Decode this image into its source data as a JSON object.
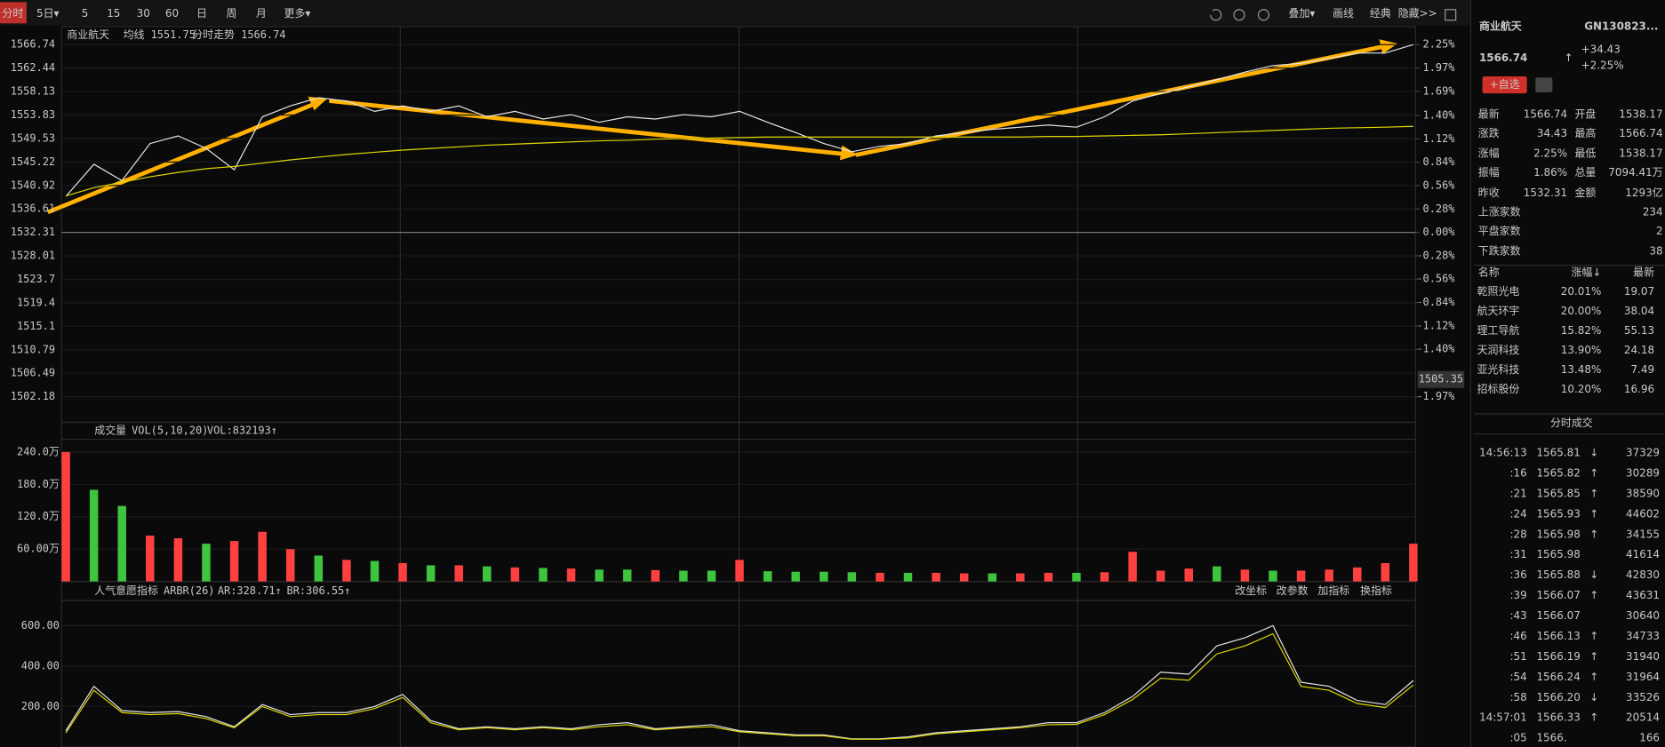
{
  "toolbar": {
    "tabs": [
      "分时",
      "5日▾",
      "5",
      "15",
      "30",
      "60",
      "日",
      "周",
      "月",
      "更多▾"
    ],
    "tools": [
      "叠加▾",
      "画线",
      "经典",
      "隐藏>>"
    ]
  },
  "price_chart": {
    "type": "line",
    "title": "商业航天",
    "avg_label": "均线",
    "avg_value": "1551.75",
    "trend_label": "分时走势",
    "last_value": "1566.74",
    "ylim": [
      1497.49,
      1570.05
    ],
    "yticks": [
      1566.74,
      1562.44,
      1558.13,
      1553.83,
      1549.53,
      1545.22,
      1540.92,
      1536.61,
      1532.31,
      1528.01,
      1523.7,
      1519.4,
      1515.1,
      1510.79,
      1506.49,
      1502.18
    ],
    "y2lim": [
      -2.2755,
      2.466
    ],
    "y2ticks": [
      {
        "value": 2.25,
        "label": "2.25%"
      },
      {
        "value": 1.97,
        "label": "1.97%"
      },
      {
        "value": 1.69,
        "label": "1.69%"
      },
      {
        "value": 1.4,
        "label": "1.40%"
      },
      {
        "value": 1.12,
        "label": "1.12%"
      },
      {
        "value": 0.84,
        "label": "0.84%"
      },
      {
        "value": 0.56,
        "label": "0.56%"
      },
      {
        "value": 0.28,
        "label": "0.28%"
      },
      {
        "value": 0,
        "label": "0.00%"
      },
      {
        "value": -0.28,
        "label": "-0.28%"
      },
      {
        "value": -0.56,
        "label": "-0.56%"
      },
      {
        "value": -0.84,
        "label": "-0.84%"
      },
      {
        "value": -1.12,
        "label": "-1.12%"
      },
      {
        "value": -1.4,
        "label": "-1.40%"
      },
      {
        "value": -1.97,
        "label": "-1.97%"
      }
    ],
    "cursor_value": 1505.35,
    "series": [
      {
        "name": "分时",
        "color": "#e6e6e6",
        "values": [
          1538.9,
          1544.8,
          1541.8,
          1548.6,
          1550.0,
          1547.7,
          1543.8,
          1553.5,
          1555.5,
          1557.0,
          1556.4,
          1554.5,
          1555.5,
          1554.5,
          1555.5,
          1553.5,
          1554.5,
          1553.1,
          1553.9,
          1552.5,
          1553.5,
          1553.1,
          1553.9,
          1553.5,
          1554.5,
          1552.5,
          1550.6,
          1548.6,
          1547.1,
          1548.1,
          1548.6,
          1550.0,
          1550.6,
          1551.2,
          1551.6,
          1552.0,
          1551.6,
          1553.5,
          1556.4,
          1557.8,
          1559.0,
          1560.3,
          1561.7,
          1562.9,
          1563.3,
          1564.2,
          1565.2,
          1565.2,
          1566.74
        ]
      },
      {
        "name": "均线",
        "color": "#e0d800",
        "values": [
          1539.0,
          1540.5,
          1541.5,
          1542.5,
          1543.3,
          1544.0,
          1544.4,
          1545.0,
          1545.6,
          1546.1,
          1546.6,
          1547.0,
          1547.4,
          1547.7,
          1548.0,
          1548.3,
          1548.5,
          1548.7,
          1548.9,
          1549.1,
          1549.2,
          1549.4,
          1549.5,
          1549.6,
          1549.7,
          1549.8,
          1549.8,
          1549.8,
          1549.8,
          1549.8,
          1549.8,
          1549.8,
          1549.8,
          1549.8,
          1549.8,
          1549.9,
          1549.9,
          1550.0,
          1550.1,
          1550.2,
          1550.4,
          1550.6,
          1550.8,
          1551.0,
          1551.2,
          1551.4,
          1551.5,
          1551.6,
          1551.75
        ]
      }
    ]
  },
  "volume_chart": {
    "type": "bar",
    "title": "成交量",
    "params": "VOL(5,10,20)",
    "vol_label": "VOL:832193↑",
    "ylim": [
      0,
      263.6
    ],
    "yticks": [
      {
        "value": 240,
        "label": "240.0万"
      },
      {
        "value": 180,
        "label": "180.0万"
      },
      {
        "value": 120,
        "label": "120.0万"
      },
      {
        "value": 60,
        "label": "60.00万"
      }
    ],
    "values": [
      240,
      170,
      140,
      85,
      80,
      70,
      75,
      92,
      60,
      48,
      40,
      38,
      34,
      30,
      30,
      28,
      26,
      25,
      24,
      22,
      22,
      21,
      20,
      20,
      40,
      19,
      18,
      18,
      17,
      16,
      16,
      16,
      15,
      15,
      15,
      16,
      16,
      17,
      55,
      20,
      24,
      28,
      22,
      20,
      20,
      22,
      26,
      34,
      70
    ],
    "colors": [
      "#ff4040",
      "#3ec53e",
      "#3ec53e",
      "#ff4040",
      "#ff4040",
      "#3ec53e",
      "#ff4040",
      "#ff4040",
      "#ff4040",
      "#3ec53e",
      "#ff4040",
      "#3ec53e",
      "#ff4040",
      "#3ec53e",
      "#ff4040",
      "#3ec53e",
      "#ff4040",
      "#3ec53e",
      "#ff4040",
      "#3ec53e",
      "#3ec53e",
      "#ff4040",
      "#3ec53e",
      "#3ec53e",
      "#ff4040",
      "#3ec53e",
      "#3ec53e",
      "#3ec53e",
      "#3ec53e",
      "#ff4040",
      "#3ec53e",
      "#ff4040",
      "#ff4040",
      "#3ec53e",
      "#ff4040",
      "#ff4040",
      "#3ec53e",
      "#ff4040",
      "#ff4040",
      "#ff4040",
      "#ff4040",
      "#3ec53e",
      "#ff4040",
      "#3ec53e",
      "#ff4040",
      "#ff4040",
      "#ff4040",
      "#ff4040",
      "#ff4040"
    ]
  },
  "arbr_chart": {
    "type": "line",
    "title": "人气意愿指标",
    "params": "ARBR(26)",
    "ar_label": "AR:328.71↑",
    "br_label": "BR:306.55↑",
    "buttons": [
      "改坐标",
      "改参数",
      "加指标",
      "换指标"
    ],
    "ylim": [
      0,
      724
    ],
    "yticks": [
      {
        "value": 600,
        "label": "600.00"
      },
      {
        "value": 400,
        "label": "400.00"
      },
      {
        "value": 200,
        "label": "200.00"
      }
    ],
    "series": [
      {
        "name": "AR",
        "color": "#e6e6e6",
        "values": [
          80,
          300,
          180,
          170,
          175,
          150,
          100,
          210,
          160,
          170,
          170,
          200,
          260,
          130,
          90,
          100,
          90,
          100,
          90,
          110,
          120,
          90,
          100,
          110,
          80,
          70,
          60,
          60,
          40,
          40,
          50,
          70,
          80,
          90,
          100,
          120,
          120,
          170,
          250,
          370,
          360,
          500,
          540,
          600,
          320,
          300,
          230,
          210,
          328.71
        ]
      },
      {
        "name": "BR",
        "color": "#e0d800",
        "values": [
          70,
          280,
          170,
          160,
          165,
          140,
          95,
          200,
          150,
          160,
          160,
          190,
          245,
          120,
          85,
          95,
          85,
          95,
          85,
          100,
          110,
          85,
          95,
          100,
          75,
          65,
          55,
          55,
          38,
          38,
          45,
          65,
          75,
          85,
          95,
          110,
          112,
          160,
          235,
          340,
          330,
          460,
          500,
          560,
          300,
          280,
          215,
          195,
          306.55
        ]
      }
    ]
  },
  "quote": {
    "name": "商业航天",
    "code": "GN130823...",
    "price": "1566.74",
    "arrow": "↑",
    "change": "+34.43",
    "change_pct": "+2.25%",
    "button": "+自选",
    "stats": [
      [
        "最新",
        "1566.74",
        "开盘",
        "1538.17"
      ],
      [
        "涨跌",
        "34.43",
        "最高",
        "1566.74"
      ],
      [
        "涨幅",
        "2.25%",
        "最低",
        "1538.17"
      ],
      [
        "振幅",
        "1.86%",
        "总量",
        "7094.41万"
      ],
      [
        "昨收",
        "1532.31",
        "金额",
        "1293亿"
      ]
    ],
    "breadth": [
      [
        "上涨家数",
        "234"
      ],
      [
        "平盘家数",
        "2"
      ],
      [
        "下跌家数",
        "38"
      ]
    ]
  },
  "constituents": {
    "headers": [
      "名称",
      "涨幅↓",
      "最新"
    ],
    "rows": [
      [
        "乾照光电",
        "20.01%",
        "19.07"
      ],
      [
        "航天环宇",
        "20.00%",
        "38.04"
      ],
      [
        "理工导航",
        "15.82%",
        "55.13"
      ],
      [
        "天润科技",
        "13.90%",
        "24.18"
      ],
      [
        "亚光科技",
        "13.48%",
        "7.49"
      ],
      [
        "招标股份",
        "10.20%",
        "16.96"
      ]
    ]
  },
  "trades": {
    "title": "分时成交",
    "rows": [
      [
        "14:56:13",
        "1565.81",
        "↓",
        "37329"
      ],
      [
        ":16",
        "1565.82",
        "↑",
        "30289"
      ],
      [
        ":21",
        "1565.85",
        "↑",
        "38590"
      ],
      [
        ":24",
        "1565.93",
        "↑",
        "44602"
      ],
      [
        ":28",
        "1565.98",
        "↑",
        "34155"
      ],
      [
        ":31",
        "1565.98",
        "",
        "41614"
      ],
      [
        ":36",
        "1565.88",
        "↓",
        "42830"
      ],
      [
        ":39",
        "1566.07",
        "↑",
        "43631"
      ],
      [
        ":43",
        "1566.07",
        "",
        "30640"
      ],
      [
        ":46",
        "1566.13",
        "↑",
        "34733"
      ],
      [
        ":51",
        "1566.19",
        "↑",
        "31940"
      ],
      [
        ":54",
        "1566.24",
        "↑",
        "31964"
      ],
      [
        ":58",
        "1566.20",
        "↓",
        "33526"
      ],
      [
        "14:57:01",
        "1566.33",
        "↑",
        "20514"
      ],
      [
        ":05",
        "1566.",
        "",
        "166"
      ]
    ]
  }
}
